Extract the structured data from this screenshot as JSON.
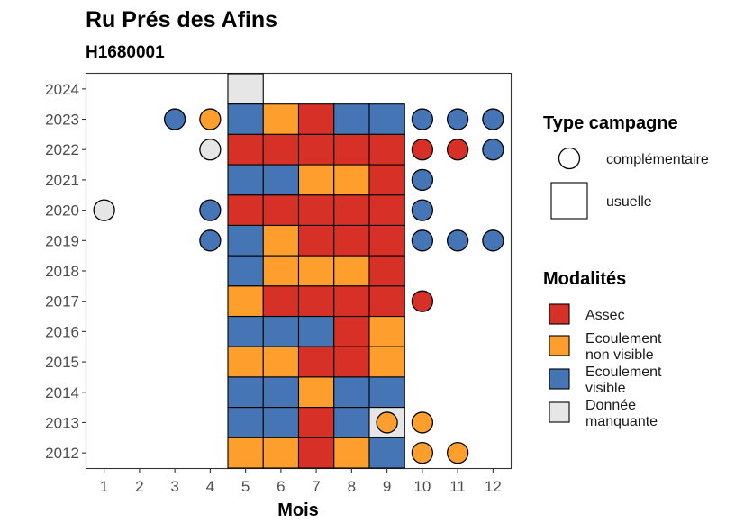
{
  "chart_data": {
    "type": "heatmap",
    "title": "Ru Prés des Afins",
    "subtitle": "H1680001",
    "xlabel": "Mois",
    "ylabel": "",
    "x_ticks": [
      1,
      2,
      3,
      4,
      5,
      6,
      7,
      8,
      9,
      10,
      11,
      12
    ],
    "y_ticks": [
      2012,
      2013,
      2014,
      2015,
      2016,
      2017,
      2018,
      2019,
      2020,
      2021,
      2022,
      2023,
      2024
    ],
    "xlim": [
      0.5,
      12.5
    ],
    "ylim": [
      2011.5,
      2024.5
    ],
    "grid": false,
    "legend_placement": "right",
    "colors": {
      "Assec": "#d73027",
      "Ecoulement non visible": "#fd9e2d",
      "Ecoulement visible": "#4575b4",
      "Donnée manquante": "#e6e6e6"
    },
    "legend_shape": {
      "title": "Type campagne",
      "entries": [
        {
          "label": "complémentaire",
          "shape": "circle"
        },
        {
          "label": "usuelle",
          "shape": "square"
        }
      ]
    },
    "legend_fill": {
      "title": "Modalités",
      "entries": [
        {
          "key": "Assec",
          "lines": [
            "Assec"
          ]
        },
        {
          "key": "Ecoulement non visible",
          "lines": [
            "Ecoulement",
            "non visible"
          ]
        },
        {
          "key": "Ecoulement visible",
          "lines": [
            "Ecoulement",
            "visible"
          ]
        },
        {
          "key": "Donnée manquante",
          "lines": [
            "Donnée",
            "manquante"
          ]
        }
      ]
    },
    "points": [
      {
        "year": 2024,
        "month": 5,
        "type": "usuelle",
        "modalite": "Donnée manquante"
      },
      {
        "year": 2023,
        "month": 3,
        "type": "complémentaire",
        "modalite": "Ecoulement visible"
      },
      {
        "year": 2023,
        "month": 4,
        "type": "complémentaire",
        "modalite": "Ecoulement non visible"
      },
      {
        "year": 2023,
        "month": 5,
        "type": "usuelle",
        "modalite": "Ecoulement visible"
      },
      {
        "year": 2023,
        "month": 6,
        "type": "usuelle",
        "modalite": "Ecoulement non visible"
      },
      {
        "year": 2023,
        "month": 7,
        "type": "usuelle",
        "modalite": "Assec"
      },
      {
        "year": 2023,
        "month": 8,
        "type": "usuelle",
        "modalite": "Ecoulement visible"
      },
      {
        "year": 2023,
        "month": 9,
        "type": "usuelle",
        "modalite": "Ecoulement visible"
      },
      {
        "year": 2023,
        "month": 10,
        "type": "complémentaire",
        "modalite": "Ecoulement visible"
      },
      {
        "year": 2023,
        "month": 11,
        "type": "complémentaire",
        "modalite": "Ecoulement visible"
      },
      {
        "year": 2023,
        "month": 12,
        "type": "complémentaire",
        "modalite": "Ecoulement visible"
      },
      {
        "year": 2022,
        "month": 4,
        "type": "complémentaire",
        "modalite": "Donnée manquante"
      },
      {
        "year": 2022,
        "month": 5,
        "type": "usuelle",
        "modalite": "Assec"
      },
      {
        "year": 2022,
        "month": 6,
        "type": "usuelle",
        "modalite": "Assec"
      },
      {
        "year": 2022,
        "month": 7,
        "type": "usuelle",
        "modalite": "Assec"
      },
      {
        "year": 2022,
        "month": 8,
        "type": "usuelle",
        "modalite": "Assec"
      },
      {
        "year": 2022,
        "month": 9,
        "type": "usuelle",
        "modalite": "Assec"
      },
      {
        "year": 2022,
        "month": 10,
        "type": "complémentaire",
        "modalite": "Assec"
      },
      {
        "year": 2022,
        "month": 11,
        "type": "complémentaire",
        "modalite": "Assec"
      },
      {
        "year": 2022,
        "month": 12,
        "type": "complémentaire",
        "modalite": "Ecoulement visible"
      },
      {
        "year": 2021,
        "month": 5,
        "type": "usuelle",
        "modalite": "Ecoulement visible"
      },
      {
        "year": 2021,
        "month": 6,
        "type": "usuelle",
        "modalite": "Ecoulement visible"
      },
      {
        "year": 2021,
        "month": 7,
        "type": "usuelle",
        "modalite": "Ecoulement non visible"
      },
      {
        "year": 2021,
        "month": 8,
        "type": "usuelle",
        "modalite": "Ecoulement non visible"
      },
      {
        "year": 2021,
        "month": 9,
        "type": "usuelle",
        "modalite": "Assec"
      },
      {
        "year": 2021,
        "month": 10,
        "type": "complémentaire",
        "modalite": "Ecoulement visible"
      },
      {
        "year": 2020,
        "month": 1,
        "type": "complémentaire",
        "modalite": "Donnée manquante"
      },
      {
        "year": 2020,
        "month": 4,
        "type": "complémentaire",
        "modalite": "Ecoulement visible"
      },
      {
        "year": 2020,
        "month": 5,
        "type": "usuelle",
        "modalite": "Assec"
      },
      {
        "year": 2020,
        "month": 6,
        "type": "usuelle",
        "modalite": "Assec"
      },
      {
        "year": 2020,
        "month": 7,
        "type": "usuelle",
        "modalite": "Assec"
      },
      {
        "year": 2020,
        "month": 8,
        "type": "usuelle",
        "modalite": "Assec"
      },
      {
        "year": 2020,
        "month": 9,
        "type": "usuelle",
        "modalite": "Assec"
      },
      {
        "year": 2020,
        "month": 10,
        "type": "complémentaire",
        "modalite": "Ecoulement visible"
      },
      {
        "year": 2019,
        "month": 4,
        "type": "complémentaire",
        "modalite": "Ecoulement visible"
      },
      {
        "year": 2019,
        "month": 5,
        "type": "usuelle",
        "modalite": "Ecoulement visible"
      },
      {
        "year": 2019,
        "month": 6,
        "type": "usuelle",
        "modalite": "Ecoulement non visible"
      },
      {
        "year": 2019,
        "month": 7,
        "type": "usuelle",
        "modalite": "Assec"
      },
      {
        "year": 2019,
        "month": 8,
        "type": "usuelle",
        "modalite": "Assec"
      },
      {
        "year": 2019,
        "month": 9,
        "type": "usuelle",
        "modalite": "Assec"
      },
      {
        "year": 2019,
        "month": 10,
        "type": "complémentaire",
        "modalite": "Ecoulement visible"
      },
      {
        "year": 2019,
        "month": 11,
        "type": "complémentaire",
        "modalite": "Ecoulement visible"
      },
      {
        "year": 2019,
        "month": 12,
        "type": "complémentaire",
        "modalite": "Ecoulement visible"
      },
      {
        "year": 2018,
        "month": 5,
        "type": "usuelle",
        "modalite": "Ecoulement visible"
      },
      {
        "year": 2018,
        "month": 6,
        "type": "usuelle",
        "modalite": "Ecoulement non visible"
      },
      {
        "year": 2018,
        "month": 7,
        "type": "usuelle",
        "modalite": "Ecoulement non visible"
      },
      {
        "year": 2018,
        "month": 8,
        "type": "usuelle",
        "modalite": "Ecoulement non visible"
      },
      {
        "year": 2018,
        "month": 9,
        "type": "usuelle",
        "modalite": "Assec"
      },
      {
        "year": 2017,
        "month": 5,
        "type": "usuelle",
        "modalite": "Ecoulement non visible"
      },
      {
        "year": 2017,
        "month": 6,
        "type": "usuelle",
        "modalite": "Assec"
      },
      {
        "year": 2017,
        "month": 7,
        "type": "usuelle",
        "modalite": "Assec"
      },
      {
        "year": 2017,
        "month": 8,
        "type": "usuelle",
        "modalite": "Assec"
      },
      {
        "year": 2017,
        "month": 9,
        "type": "usuelle",
        "modalite": "Assec"
      },
      {
        "year": 2017,
        "month": 10,
        "type": "complémentaire",
        "modalite": "Assec"
      },
      {
        "year": 2016,
        "month": 5,
        "type": "usuelle",
        "modalite": "Ecoulement visible"
      },
      {
        "year": 2016,
        "month": 6,
        "type": "usuelle",
        "modalite": "Ecoulement visible"
      },
      {
        "year": 2016,
        "month": 7,
        "type": "usuelle",
        "modalite": "Ecoulement visible"
      },
      {
        "year": 2016,
        "month": 8,
        "type": "usuelle",
        "modalite": "Assec"
      },
      {
        "year": 2016,
        "month": 9,
        "type": "usuelle",
        "modalite": "Ecoulement non visible"
      },
      {
        "year": 2015,
        "month": 5,
        "type": "usuelle",
        "modalite": "Ecoulement non visible"
      },
      {
        "year": 2015,
        "month": 6,
        "type": "usuelle",
        "modalite": "Ecoulement non visible"
      },
      {
        "year": 2015,
        "month": 7,
        "type": "usuelle",
        "modalite": "Assec"
      },
      {
        "year": 2015,
        "month": 8,
        "type": "usuelle",
        "modalite": "Assec"
      },
      {
        "year": 2015,
        "month": 9,
        "type": "usuelle",
        "modalite": "Ecoulement non visible"
      },
      {
        "year": 2014,
        "month": 5,
        "type": "usuelle",
        "modalite": "Ecoulement visible"
      },
      {
        "year": 2014,
        "month": 6,
        "type": "usuelle",
        "modalite": "Ecoulement visible"
      },
      {
        "year": 2014,
        "month": 7,
        "type": "usuelle",
        "modalite": "Ecoulement non visible"
      },
      {
        "year": 2014,
        "month": 8,
        "type": "usuelle",
        "modalite": "Ecoulement visible"
      },
      {
        "year": 2014,
        "month": 9,
        "type": "usuelle",
        "modalite": "Ecoulement visible"
      },
      {
        "year": 2013,
        "month": 5,
        "type": "usuelle",
        "modalite": "Ecoulement visible"
      },
      {
        "year": 2013,
        "month": 6,
        "type": "usuelle",
        "modalite": "Ecoulement visible"
      },
      {
        "year": 2013,
        "month": 7,
        "type": "usuelle",
        "modalite": "Assec"
      },
      {
        "year": 2013,
        "month": 8,
        "type": "usuelle",
        "modalite": "Ecoulement visible"
      },
      {
        "year": 2013,
        "month": 9,
        "type": "usuelle",
        "modalite": "Donnée manquante"
      },
      {
        "year": 2013,
        "month": 9,
        "type": "complémentaire",
        "modalite": "Ecoulement non visible"
      },
      {
        "year": 2013,
        "month": 10,
        "type": "complémentaire",
        "modalite": "Ecoulement non visible"
      },
      {
        "year": 2012,
        "month": 5,
        "type": "usuelle",
        "modalite": "Ecoulement non visible"
      },
      {
        "year": 2012,
        "month": 6,
        "type": "usuelle",
        "modalite": "Ecoulement non visible"
      },
      {
        "year": 2012,
        "month": 7,
        "type": "usuelle",
        "modalite": "Assec"
      },
      {
        "year": 2012,
        "month": 8,
        "type": "usuelle",
        "modalite": "Ecoulement non visible"
      },
      {
        "year": 2012,
        "month": 9,
        "type": "usuelle",
        "modalite": "Ecoulement visible"
      },
      {
        "year": 2012,
        "month": 10,
        "type": "complémentaire",
        "modalite": "Ecoulement non visible"
      },
      {
        "year": 2012,
        "month": 11,
        "type": "complémentaire",
        "modalite": "Ecoulement non visible"
      }
    ]
  }
}
